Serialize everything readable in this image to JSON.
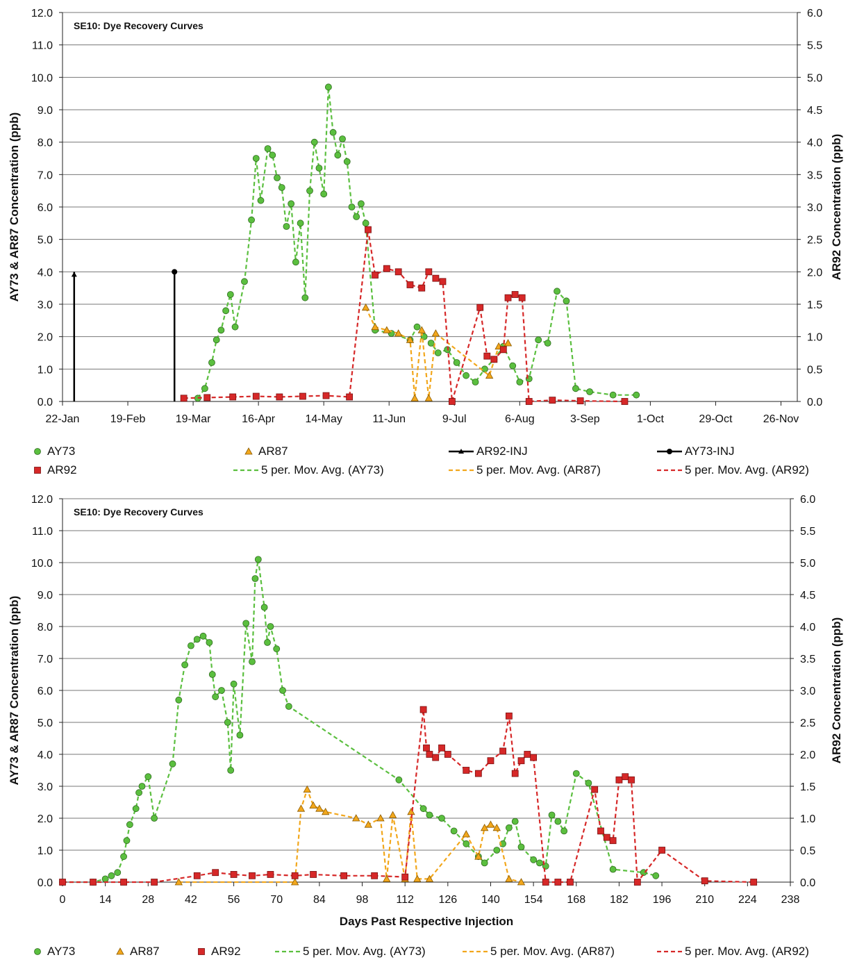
{
  "chart_data": [
    {
      "type": "scatter",
      "title": "SE10: Dye Recovery Curves",
      "ylabel": "AY73 & AR87 Concentration (ppb)",
      "y2label": "AR92 Concentration (ppb)",
      "xlabel": "",
      "x_type": "date",
      "xlim": [
        "2009-01-22",
        "2009-12-03"
      ],
      "ylim": [
        0,
        12
      ],
      "y2lim": [
        0,
        6
      ],
      "x_ticks": [
        "22-Jan",
        "19-Feb",
        "19-Mar",
        "16-Apr",
        "14-May",
        "11-Jun",
        "9-Jul",
        "6-Aug",
        "3-Sep",
        "1-Oct",
        "29-Oct",
        "26-Nov"
      ],
      "y_ticks": [
        "0.0",
        "1.0",
        "2.0",
        "3.0",
        "4.0",
        "5.0",
        "6.0",
        "7.0",
        "8.0",
        "9.0",
        "10.0",
        "11.0",
        "12.0"
      ],
      "y2_ticks": [
        "0.0",
        "0.5",
        "1.0",
        "1.5",
        "2.0",
        "2.5",
        "3.0",
        "3.5",
        "4.0",
        "4.5",
        "5.0",
        "5.5",
        "6.0"
      ],
      "grid": true,
      "legend": [
        "AY73",
        "AR87",
        "AR92-INJ",
        "AY73-INJ",
        "AR92",
        "5 per. Mov. Avg. (AY73)",
        "5 per. Mov. Avg. (AR87)",
        "5 per. Mov. Avg. (AR92)"
      ],
      "legend_position": "bottom",
      "series": [
        {
          "name": "AY73",
          "axis": "left",
          "marker": "circle",
          "color": "#5bbf3f",
          "x": [
            "2009-03-21",
            "2009-03-24",
            "2009-03-27",
            "2009-03-29",
            "2009-03-31",
            "2009-04-02",
            "2009-04-04",
            "2009-04-06",
            "2009-04-10",
            "2009-04-13",
            "2009-04-15",
            "2009-04-17",
            "2009-04-20",
            "2009-04-22",
            "2009-04-24",
            "2009-04-26",
            "2009-04-28",
            "2009-04-30",
            "2009-05-02",
            "2009-05-04",
            "2009-05-06",
            "2009-05-08",
            "2009-05-10",
            "2009-05-12",
            "2009-05-14",
            "2009-05-16",
            "2009-05-18",
            "2009-05-20",
            "2009-05-22",
            "2009-05-24",
            "2009-05-26",
            "2009-05-28",
            "2009-05-30",
            "2009-06-01",
            "2009-06-05",
            "2009-06-12",
            "2009-06-20",
            "2009-06-23",
            "2009-06-26",
            "2009-06-29",
            "2009-07-02",
            "2009-07-06",
            "2009-07-10",
            "2009-07-14",
            "2009-07-18",
            "2009-07-22",
            "2009-07-26",
            "2009-07-30",
            "2009-08-03",
            "2009-08-06",
            "2009-08-10",
            "2009-08-14",
            "2009-08-18",
            "2009-08-22",
            "2009-08-26",
            "2009-08-30",
            "2009-09-05",
            "2009-09-15",
            "2009-09-25"
          ],
          "y": [
            0.1,
            0.4,
            1.2,
            1.9,
            2.2,
            2.8,
            3.3,
            2.3,
            3.7,
            5.6,
            7.5,
            6.2,
            7.8,
            7.6,
            6.9,
            6.6,
            5.4,
            6.1,
            4.3,
            5.5,
            3.2,
            6.5,
            8.0,
            7.2,
            6.4,
            9.7,
            8.3,
            7.6,
            8.1,
            7.4,
            6.0,
            5.7,
            6.1,
            5.5,
            2.2,
            2.1,
            1.9,
            2.3,
            2.0,
            1.8,
            1.5,
            1.6,
            1.2,
            0.8,
            0.6,
            1.0,
            1.3,
            1.7,
            1.1,
            0.6,
            0.7,
            1.9,
            1.8,
            3.4,
            3.1,
            0.4,
            0.3,
            0.2,
            0.2
          ]
        },
        {
          "name": "AR87",
          "axis": "left",
          "marker": "triangle",
          "color": "#f2a71c",
          "x": [
            "2009-06-01",
            "2009-06-05",
            "2009-06-10",
            "2009-06-15",
            "2009-06-20",
            "2009-06-22",
            "2009-06-25",
            "2009-06-28",
            "2009-07-01",
            "2009-07-24",
            "2009-07-28",
            "2009-08-01"
          ],
          "y": [
            2.9,
            2.3,
            2.2,
            2.1,
            1.9,
            0.1,
            2.2,
            0.1,
            2.1,
            0.8,
            1.7,
            1.8
          ]
        },
        {
          "name": "AR92",
          "axis": "right",
          "marker": "square",
          "color": "#d62828",
          "x": [
            "2009-03-15",
            "2009-03-25",
            "2009-04-05",
            "2009-04-15",
            "2009-04-25",
            "2009-05-05",
            "2009-05-15",
            "2009-05-25",
            "2009-06-02",
            "2009-06-05",
            "2009-06-10",
            "2009-06-15",
            "2009-06-20",
            "2009-06-25",
            "2009-06-28",
            "2009-07-01",
            "2009-07-04",
            "2009-07-08",
            "2009-07-20",
            "2009-07-23",
            "2009-07-26",
            "2009-07-30",
            "2009-08-01",
            "2009-08-04",
            "2009-08-07",
            "2009-08-10",
            "2009-08-20",
            "2009-09-01",
            "2009-09-20"
          ],
          "y": [
            0.05,
            0.06,
            0.07,
            0.08,
            0.07,
            0.08,
            0.09,
            0.07,
            2.65,
            1.95,
            2.05,
            2.0,
            1.8,
            1.75,
            2.0,
            1.9,
            1.85,
            0.0,
            1.45,
            0.7,
            0.65,
            0.8,
            1.6,
            1.65,
            1.6,
            0.0,
            0.02,
            0.01,
            0.0
          ]
        }
      ],
      "injections": [
        {
          "name": "AR92-INJ",
          "x": "2009-01-27",
          "y": 4.0
        },
        {
          "name": "AY73-INJ",
          "x": "2009-03-11",
          "y": 4.0
        }
      ]
    },
    {
      "type": "scatter",
      "title": "SE10: Dye Recovery Curves",
      "ylabel": "AY73 & AR87 Concentration (ppb)",
      "y2label": "AR92 Concentration (ppb)",
      "xlabel": "Days Past Respective Injection",
      "xlim": [
        0,
        238
      ],
      "ylim": [
        0,
        12
      ],
      "y2lim": [
        0,
        6
      ],
      "x_ticks": [
        "0",
        "14",
        "28",
        "42",
        "56",
        "70",
        "84",
        "98",
        "112",
        "126",
        "140",
        "154",
        "168",
        "182",
        "196",
        "210",
        "224",
        "238"
      ],
      "y_ticks": [
        "0.0",
        "1.0",
        "2.0",
        "3.0",
        "4.0",
        "5.0",
        "6.0",
        "7.0",
        "8.0",
        "9.0",
        "10.0",
        "11.0",
        "12.0"
      ],
      "y2_ticks": [
        "0.0",
        "0.5",
        "1.0",
        "1.5",
        "2.0",
        "2.5",
        "3.0",
        "3.5",
        "4.0",
        "4.5",
        "5.0",
        "5.5",
        "6.0"
      ],
      "grid": true,
      "legend": [
        "AY73",
        "AR87",
        "AR92",
        "5 per. Mov. Avg. (AY73)",
        "5 per. Mov. Avg. (AR87)",
        "5 per. Mov. Avg. (AR92)"
      ],
      "legend_position": "bottom",
      "series": [
        {
          "name": "AY73",
          "axis": "left",
          "marker": "circle",
          "color": "#5bbf3f",
          "x": [
            0,
            10,
            14,
            16,
            18,
            20,
            21,
            22,
            24,
            25,
            26,
            28,
            30,
            36,
            38,
            40,
            42,
            44,
            46,
            48,
            49,
            50,
            52,
            54,
            55,
            56,
            58,
            60,
            62,
            63,
            64,
            66,
            67,
            68,
            70,
            72,
            74,
            110,
            118,
            120,
            124,
            128,
            132,
            136,
            138,
            142,
            144,
            146,
            148,
            150,
            154,
            156,
            158,
            160,
            162,
            164,
            168,
            172,
            180,
            190,
            194
          ],
          "y": [
            0.0,
            0.0,
            0.1,
            0.2,
            0.3,
            0.8,
            1.3,
            1.8,
            2.3,
            2.8,
            3.0,
            3.3,
            2.0,
            3.7,
            5.7,
            6.8,
            7.4,
            7.6,
            7.7,
            7.5,
            6.5,
            5.8,
            6.0,
            5.0,
            3.5,
            6.2,
            4.6,
            8.1,
            6.9,
            9.5,
            10.1,
            8.6,
            7.5,
            8.0,
            7.3,
            6.0,
            5.5,
            3.2,
            2.3,
            2.1,
            2.0,
            1.6,
            1.2,
            0.8,
            0.6,
            1.0,
            1.2,
            1.7,
            1.9,
            1.1,
            0.7,
            0.6,
            0.5,
            2.1,
            1.9,
            1.6,
            3.4,
            3.1,
            0.4,
            0.3,
            0.2
          ]
        },
        {
          "name": "AR87",
          "axis": "left",
          "marker": "triangle",
          "color": "#f2a71c",
          "x": [
            38,
            76,
            78,
            80,
            82,
            84,
            86,
            96,
            100,
            104,
            106,
            108,
            112,
            114,
            116,
            120,
            132,
            136,
            138,
            140,
            142,
            146,
            150
          ],
          "y": [
            0.0,
            0.0,
            2.3,
            2.9,
            2.4,
            2.3,
            2.2,
            2.0,
            1.8,
            2.0,
            0.1,
            2.1,
            0.1,
            2.2,
            0.1,
            0.1,
            1.5,
            0.8,
            1.7,
            1.8,
            1.7,
            0.1,
            0.0
          ],
          "note": "scattered triangles"
        },
        {
          "name": "AR92",
          "axis": "right",
          "marker": "square",
          "color": "#d62828",
          "x": [
            0,
            10,
            20,
            30,
            44,
            50,
            56,
            62,
            68,
            76,
            82,
            92,
            102,
            112,
            118,
            119,
            120,
            122,
            124,
            126,
            132,
            136,
            140,
            144,
            146,
            148,
            150,
            152,
            154,
            158,
            162,
            166,
            174,
            176,
            178,
            180,
            182,
            184,
            186,
            188,
            196,
            210,
            226
          ],
          "y": [
            0.0,
            0.0,
            0.0,
            0.0,
            0.1,
            0.15,
            0.12,
            0.1,
            0.12,
            0.1,
            0.12,
            0.1,
            0.1,
            0.08,
            2.7,
            2.1,
            2.0,
            1.95,
            2.1,
            2.0,
            1.75,
            1.7,
            1.9,
            2.05,
            2.6,
            1.7,
            1.9,
            2.0,
            1.95,
            0.0,
            0.0,
            0.0,
            1.45,
            0.8,
            0.7,
            0.65,
            1.6,
            1.65,
            1.6,
            0.0,
            0.5,
            0.02,
            0.0
          ]
        }
      ]
    }
  ]
}
